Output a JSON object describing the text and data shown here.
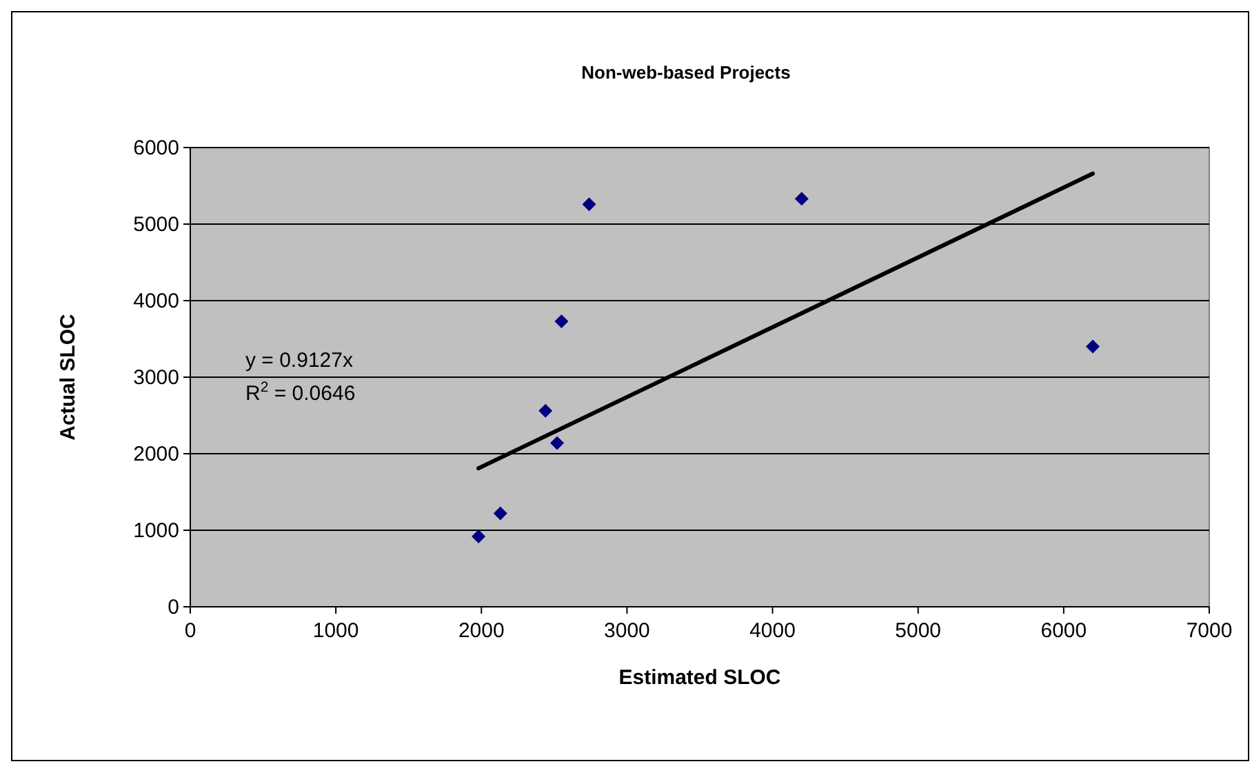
{
  "chart_data": {
    "type": "scatter",
    "title": "Non-web-based Projects",
    "xlabel": "Estimated SLOC",
    "ylabel": "Actual SLOC",
    "series": [
      {
        "color": "#000080",
        "marker": "diamond",
        "x": [
          1980,
          2130,
          2440,
          2520,
          2550,
          2740,
          4200,
          6200
        ],
        "values": [
          920,
          1220,
          2560,
          2140,
          3730,
          5260,
          5330,
          3400
        ]
      },
      {
        "type": "line",
        "color": "#000000",
        "marker": "none",
        "line_style": "solid",
        "x": [
          1980,
          6200
        ],
        "values": [
          1810,
          5660
        ]
      }
    ],
    "xlim": [
      0,
      7000
    ],
    "xticks": [
      0,
      1000,
      2000,
      3000,
      4000,
      5000,
      6000,
      7000
    ],
    "ylim": [
      0,
      6000
    ],
    "yticks": [
      0,
      1000,
      2000,
      3000,
      4000,
      5000,
      6000
    ],
    "grid": "y",
    "annotations": [
      "y = 0.9127x",
      "R$^{2}$ = 0.0646"
    ]
  }
}
